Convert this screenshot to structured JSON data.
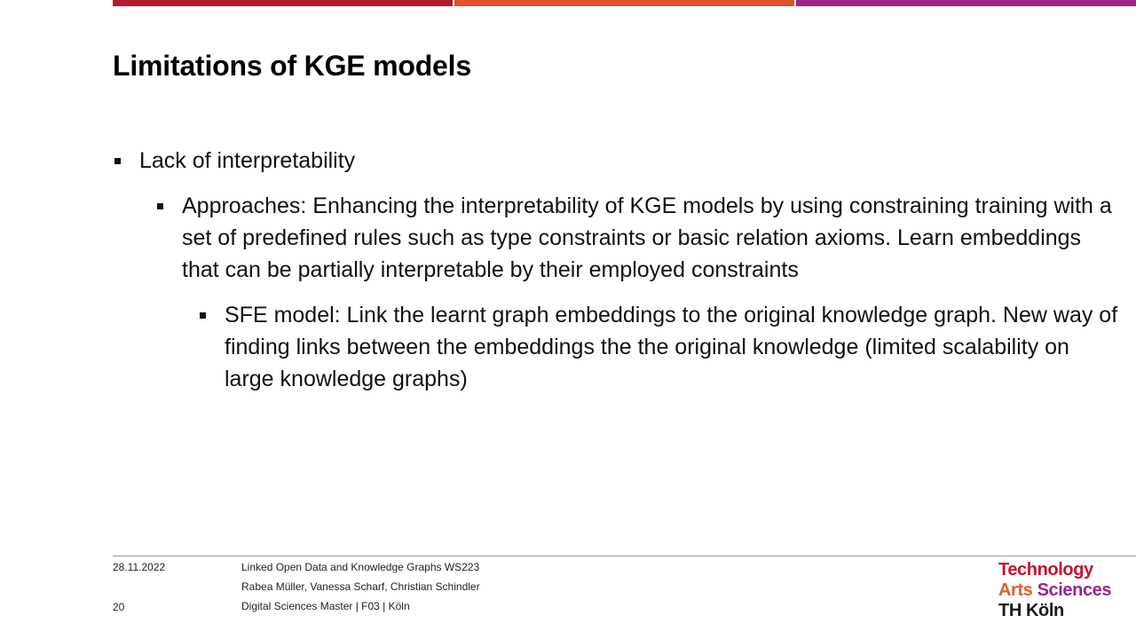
{
  "colors": {
    "bar_red": "#b01c2e",
    "bar_orange": "#e0522a",
    "bar_purple": "#9b2486",
    "logo_red": "#c8102e",
    "logo_orange": "#e85d2a",
    "logo_purple": "#9b2486",
    "logo_black": "#1a1a1a"
  },
  "slide": {
    "title": "Limitations of KGE models",
    "bullets": {
      "level1": "Lack of interpretability",
      "level2": "Approaches: Enhancing the interpretability of KGE models by using constraining training with a set of predefined rules such as type constraints or basic relation axioms. Learn embeddings that can be partially interpretable by their employed constraints",
      "level3": "SFE model: Link the learnt graph embeddings to the original knowledge graph. New way of finding links between the embeddings the the original knowledge (limited scalability on large knowledge graphs)"
    }
  },
  "footer": {
    "date": "28.11.2022",
    "page_number": "20",
    "course": "Linked Open Data and Knowledge Graphs WS223",
    "authors": "Rabea Müller, Vanessa Scharf, Christian Schindler",
    "program": "Digital Sciences Master | F03 | Köln"
  },
  "logo": {
    "line1": "Technology",
    "line2_part1": "Arts ",
    "line2_part2": "Sciences",
    "line3": "TH Köln"
  }
}
